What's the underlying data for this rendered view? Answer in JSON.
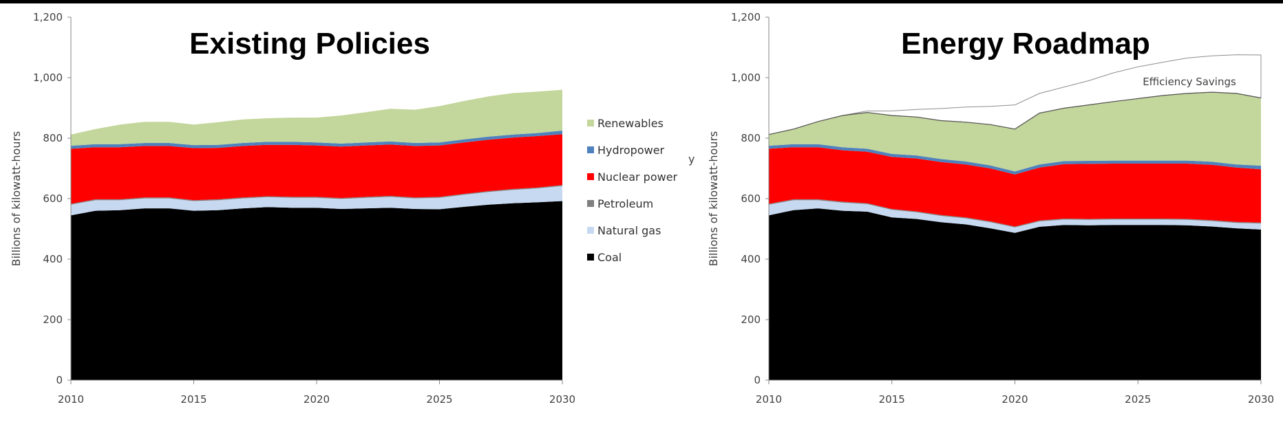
{
  "chart_data": [
    {
      "type": "area",
      "title": "Existing Policies",
      "ylabel": "Billions of kilowatt-hours",
      "xlabel": "",
      "x": [
        2010,
        2011,
        2012,
        2013,
        2014,
        2015,
        2016,
        2017,
        2018,
        2019,
        2020,
        2021,
        2022,
        2023,
        2024,
        2025,
        2026,
        2027,
        2028,
        2029,
        2030
      ],
      "xticks": [
        "2010",
        "2015",
        "2020",
        "2025",
        "2030"
      ],
      "yticks": [
        "0",
        "200",
        "400",
        "600",
        "800",
        "1,000",
        "1,200"
      ],
      "ylim": [
        0,
        1200
      ],
      "stacked": true,
      "series": [
        {
          "name": "Coal",
          "color": "#000000",
          "values": [
            545,
            560,
            562,
            568,
            568,
            560,
            562,
            568,
            572,
            570,
            570,
            566,
            568,
            570,
            566,
            565,
            573,
            580,
            585,
            588,
            592
          ]
        },
        {
          "name": "Natural gas",
          "color": "#c6d9f1",
          "values": [
            35,
            35,
            33,
            33,
            33,
            32,
            33,
            33,
            33,
            33,
            33,
            33,
            35,
            36,
            35,
            38,
            40,
            42,
            44,
            46,
            50
          ]
        },
        {
          "name": "Petroleum",
          "color": "#7f7f7f",
          "values": [
            3,
            3,
            3,
            3,
            3,
            3,
            3,
            3,
            3,
            3,
            3,
            3,
            3,
            3,
            3,
            3,
            3,
            3,
            3,
            3,
            3
          ]
        },
        {
          "name": "Nuclear power",
          "color": "#ff0000",
          "values": [
            182,
            172,
            172,
            170,
            170,
            172,
            170,
            170,
            170,
            172,
            170,
            170,
            170,
            170,
            170,
            170,
            170,
            170,
            170,
            170,
            168
          ]
        },
        {
          "name": "Hydropower",
          "color": "#4f81bd",
          "values": [
            10,
            10,
            10,
            10,
            10,
            10,
            10,
            10,
            10,
            10,
            10,
            10,
            10,
            10,
            10,
            10,
            10,
            10,
            10,
            10,
            12
          ]
        },
        {
          "name": "Renewables",
          "color": "#c3d69b",
          "values": [
            37,
            50,
            65,
            70,
            70,
            68,
            75,
            78,
            78,
            80,
            82,
            93,
            100,
            108,
            110,
            120,
            127,
            133,
            137,
            137,
            135
          ]
        }
      ],
      "legend": {
        "position": "right",
        "entries": [
          "Renewables",
          "Hydropower",
          "Nuclear power",
          "Petroleum",
          "Natural gas",
          "Coal"
        ]
      },
      "grid": false
    },
    {
      "type": "area",
      "title": "Energy Roadmap",
      "ylabel": "Billions of kilowatt-hours",
      "xlabel": "",
      "x": [
        2010,
        2011,
        2012,
        2013,
        2014,
        2015,
        2016,
        2017,
        2018,
        2019,
        2020,
        2021,
        2022,
        2023,
        2024,
        2025,
        2026,
        2027,
        2028,
        2029,
        2030
      ],
      "xticks": [
        "2010",
        "2015",
        "2020",
        "2025",
        "2030"
      ],
      "yticks": [
        "0",
        "200",
        "400",
        "600",
        "800",
        "1,000",
        "1,200"
      ],
      "ylim": [
        0,
        1200
      ],
      "stacked": true,
      "series": [
        {
          "name": "Coal",
          "color": "#000000",
          "values": [
            545,
            562,
            568,
            560,
            557,
            538,
            533,
            522,
            515,
            502,
            487,
            507,
            513,
            512,
            513,
            513,
            513,
            512,
            508,
            502,
            498
          ]
        },
        {
          "name": "Natural gas",
          "color": "#c6d9f1",
          "values": [
            35,
            33,
            27,
            27,
            25,
            25,
            22,
            21,
            20,
            20,
            18,
            18,
            18,
            18,
            18,
            18,
            18,
            18,
            18,
            18,
            20
          ]
        },
        {
          "name": "Petroleum",
          "color": "#7f7f7f",
          "values": [
            3,
            3,
            3,
            3,
            3,
            3,
            3,
            3,
            3,
            3,
            3,
            3,
            3,
            3,
            3,
            3,
            3,
            3,
            3,
            3,
            3
          ]
        },
        {
          "name": "Nuclear power",
          "color": "#ff0000",
          "values": [
            182,
            172,
            172,
            170,
            170,
            172,
            175,
            175,
            175,
            175,
            172,
            175,
            180,
            182,
            182,
            182,
            182,
            183,
            183,
            180,
            176
          ]
        },
        {
          "name": "Hydropower",
          "color": "#4f81bd",
          "values": [
            10,
            10,
            10,
            10,
            10,
            10,
            10,
            10,
            10,
            10,
            10,
            10,
            10,
            10,
            10,
            10,
            10,
            10,
            10,
            10,
            12
          ]
        },
        {
          "name": "Renewables",
          "color": "#c3d69b",
          "values": [
            37,
            50,
            75,
            105,
            120,
            127,
            127,
            127,
            130,
            135,
            140,
            170,
            175,
            185,
            195,
            205,
            215,
            222,
            230,
            235,
            224
          ]
        },
        {
          "name": "Efficiency Savings",
          "color": "#ffffff",
          "values": [
            0,
            0,
            0,
            0,
            5,
            15,
            25,
            40,
            50,
            60,
            80,
            65,
            70,
            80,
            95,
            105,
            110,
            117,
            120,
            128,
            142
          ]
        }
      ],
      "annotations": [
        "Efficiency Savings"
      ],
      "grid": false
    }
  ],
  "stray_glyph": "y"
}
